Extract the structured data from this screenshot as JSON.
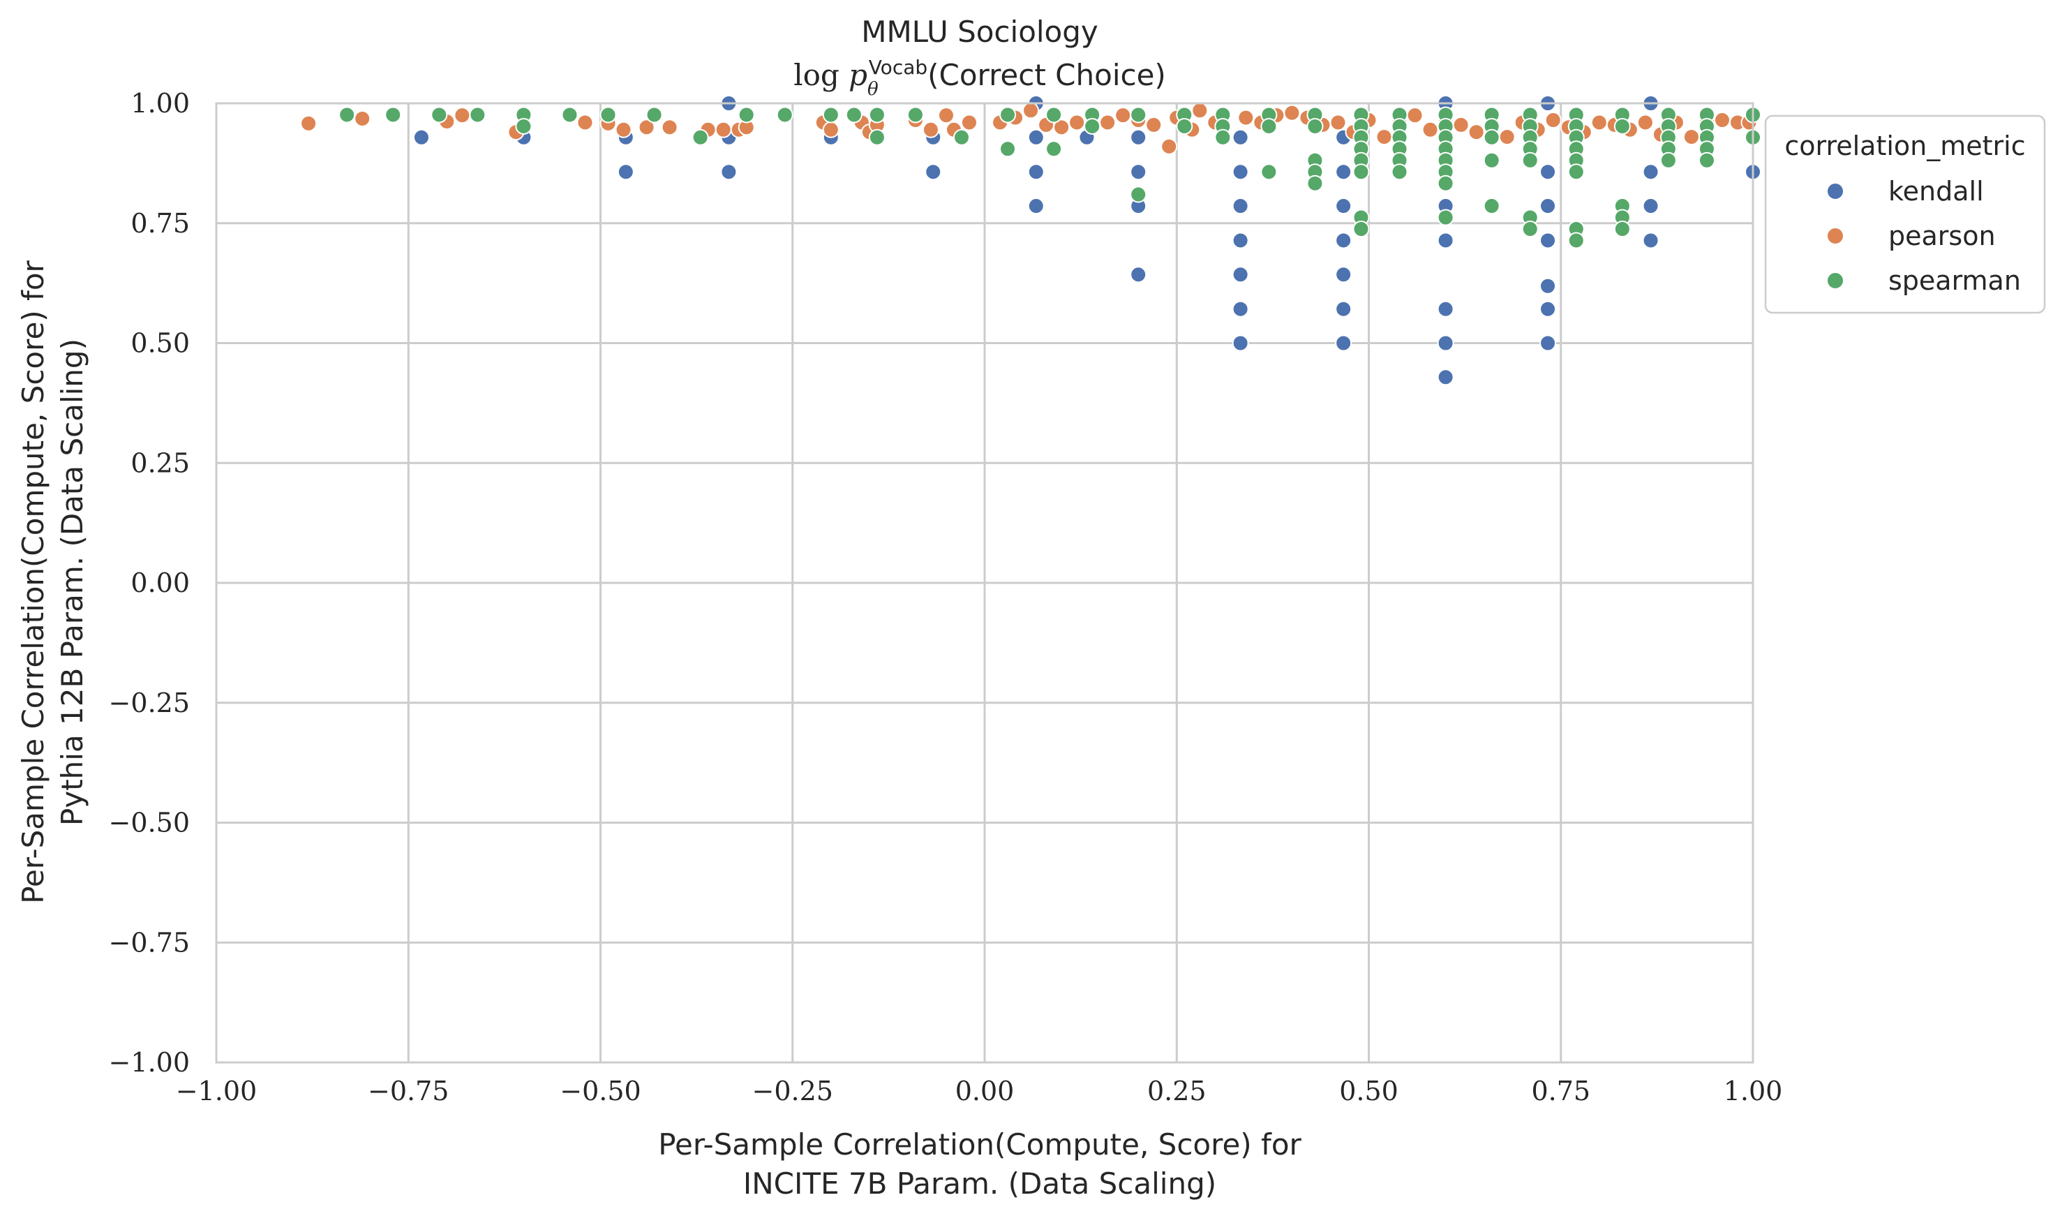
{
  "chart_data": {
    "type": "scatter",
    "title": "MMLU Sociology",
    "subtitle": {
      "prefix": "log ",
      "var": "p",
      "sub": "θ",
      "sup": "Vocab",
      "suffix": "(Correct Choice)"
    },
    "xlabel": [
      "Per-Sample Correlation(Compute, Score) for",
      "INCITE 7B Param. (Data Scaling)"
    ],
    "ylabel": [
      "Per-Sample Correlation(Compute, Score) for",
      "Pythia 12B Param. (Data Scaling)"
    ],
    "xlim": [
      -1.0,
      1.0
    ],
    "ylim": [
      -1.0,
      1.0
    ],
    "xticks": [
      "−1.00",
      "−0.75",
      "−0.50",
      "−0.25",
      "0.00",
      "0.25",
      "0.50",
      "0.75",
      "1.00"
    ],
    "yticks": [
      "1.00",
      "0.75",
      "0.50",
      "0.25",
      "0.00",
      "−0.25",
      "−0.50",
      "−0.75",
      "−1.00"
    ],
    "grid": true,
    "legend": {
      "title": "correlation_metric",
      "position": "outside-top-right",
      "entries": [
        "kendall",
        "pearson",
        "spearman"
      ]
    },
    "series": [
      {
        "name": "kendall",
        "color": "#4c72b0",
        "points": [
          [
            -0.733,
            0.929
          ],
          [
            -0.6,
            0.929
          ],
          [
            -0.467,
            0.929
          ],
          [
            -0.467,
            0.857
          ],
          [
            -0.333,
            1.0
          ],
          [
            -0.333,
            0.929
          ],
          [
            -0.333,
            0.857
          ],
          [
            -0.2,
            0.929
          ],
          [
            -0.067,
            0.929
          ],
          [
            -0.067,
            0.857
          ],
          [
            0.067,
            1.0
          ],
          [
            0.067,
            0.929
          ],
          [
            0.067,
            0.857
          ],
          [
            0.067,
            0.786
          ],
          [
            0.2,
            0.929
          ],
          [
            0.2,
            0.857
          ],
          [
            0.2,
            0.786
          ],
          [
            0.2,
            0.643
          ],
          [
            0.133,
            0.929
          ],
          [
            0.333,
            0.929
          ],
          [
            0.333,
            0.857
          ],
          [
            0.333,
            0.786
          ],
          [
            0.333,
            0.714
          ],
          [
            0.333,
            0.643
          ],
          [
            0.333,
            0.571
          ],
          [
            0.333,
            0.5
          ],
          [
            0.467,
            0.929
          ],
          [
            0.467,
            0.857
          ],
          [
            0.467,
            0.786
          ],
          [
            0.467,
            0.714
          ],
          [
            0.467,
            0.643
          ],
          [
            0.467,
            0.571
          ],
          [
            0.467,
            0.5
          ],
          [
            0.6,
            1.0
          ],
          [
            0.6,
            0.786
          ],
          [
            0.6,
            0.714
          ],
          [
            0.6,
            0.571
          ],
          [
            0.6,
            0.5
          ],
          [
            0.6,
            0.429
          ],
          [
            0.733,
            1.0
          ],
          [
            0.733,
            0.857
          ],
          [
            0.733,
            0.786
          ],
          [
            0.733,
            0.714
          ],
          [
            0.733,
            0.619
          ],
          [
            0.733,
            0.571
          ],
          [
            0.733,
            0.5
          ],
          [
            0.867,
            1.0
          ],
          [
            0.867,
            0.857
          ],
          [
            0.867,
            0.786
          ],
          [
            0.867,
            0.714
          ],
          [
            1.0,
            0.857
          ]
        ]
      },
      {
        "name": "pearson",
        "color": "#dd8452",
        "points": [
          [
            -0.88,
            0.958
          ],
          [
            -0.81,
            0.968
          ],
          [
            -0.7,
            0.962
          ],
          [
            -0.68,
            0.975
          ],
          [
            -0.61,
            0.94
          ],
          [
            -0.52,
            0.96
          ],
          [
            -0.49,
            0.958
          ],
          [
            -0.47,
            0.945
          ],
          [
            -0.44,
            0.95
          ],
          [
            -0.41,
            0.95
          ],
          [
            -0.36,
            0.945
          ],
          [
            -0.34,
            0.945
          ],
          [
            -0.32,
            0.945
          ],
          [
            -0.31,
            0.95
          ],
          [
            -0.21,
            0.96
          ],
          [
            -0.2,
            0.945
          ],
          [
            -0.16,
            0.96
          ],
          [
            -0.15,
            0.94
          ],
          [
            -0.14,
            0.955
          ],
          [
            -0.09,
            0.965
          ],
          [
            -0.07,
            0.945
          ],
          [
            -0.05,
            0.975
          ],
          [
            -0.04,
            0.945
          ],
          [
            -0.02,
            0.96
          ],
          [
            0.02,
            0.96
          ],
          [
            0.04,
            0.97
          ],
          [
            0.06,
            0.985
          ],
          [
            0.08,
            0.955
          ],
          [
            0.1,
            0.95
          ],
          [
            0.12,
            0.96
          ],
          [
            0.14,
            0.975
          ],
          [
            0.16,
            0.96
          ],
          [
            0.18,
            0.975
          ],
          [
            0.2,
            0.965
          ],
          [
            0.22,
            0.955
          ],
          [
            0.24,
            0.91
          ],
          [
            0.25,
            0.97
          ],
          [
            0.27,
            0.945
          ],
          [
            0.28,
            0.985
          ],
          [
            0.3,
            0.96
          ],
          [
            0.34,
            0.97
          ],
          [
            0.36,
            0.96
          ],
          [
            0.38,
            0.975
          ],
          [
            0.4,
            0.98
          ],
          [
            0.42,
            0.97
          ],
          [
            0.44,
            0.955
          ],
          [
            0.46,
            0.96
          ],
          [
            0.48,
            0.94
          ],
          [
            0.5,
            0.965
          ],
          [
            0.52,
            0.93
          ],
          [
            0.54,
            0.96
          ],
          [
            0.56,
            0.975
          ],
          [
            0.58,
            0.945
          ],
          [
            0.6,
            0.96
          ],
          [
            0.62,
            0.955
          ],
          [
            0.64,
            0.94
          ],
          [
            0.66,
            0.955
          ],
          [
            0.68,
            0.93
          ],
          [
            0.7,
            0.96
          ],
          [
            0.72,
            0.945
          ],
          [
            0.74,
            0.965
          ],
          [
            0.76,
            0.95
          ],
          [
            0.78,
            0.94
          ],
          [
            0.8,
            0.96
          ],
          [
            0.82,
            0.955
          ],
          [
            0.84,
            0.945
          ],
          [
            0.86,
            0.96
          ],
          [
            0.88,
            0.935
          ],
          [
            0.9,
            0.96
          ],
          [
            0.92,
            0.93
          ],
          [
            0.94,
            0.96
          ],
          [
            0.96,
            0.965
          ],
          [
            0.98,
            0.96
          ],
          [
            0.995,
            0.96
          ]
        ]
      },
      {
        "name": "spearman",
        "color": "#55a868",
        "points": [
          [
            -0.83,
            0.976
          ],
          [
            -0.77,
            0.976
          ],
          [
            -0.71,
            0.976
          ],
          [
            -0.66,
            0.976
          ],
          [
            -0.6,
            0.976
          ],
          [
            -0.6,
            0.952
          ],
          [
            -0.54,
            0.976
          ],
          [
            -0.49,
            0.976
          ],
          [
            -0.43,
            0.976
          ],
          [
            -0.37,
            0.929
          ],
          [
            -0.31,
            0.976
          ],
          [
            -0.26,
            0.976
          ],
          [
            -0.2,
            0.976
          ],
          [
            -0.17,
            0.976
          ],
          [
            -0.14,
            0.976
          ],
          [
            -0.14,
            0.929
          ],
          [
            -0.09,
            0.976
          ],
          [
            -0.03,
            0.929
          ],
          [
            0.03,
            0.976
          ],
          [
            0.03,
            0.905
          ],
          [
            0.09,
            0.976
          ],
          [
            0.09,
            0.905
          ],
          [
            0.14,
            0.976
          ],
          [
            0.14,
            0.952
          ],
          [
            0.2,
            0.976
          ],
          [
            0.2,
            0.81
          ],
          [
            0.26,
            0.976
          ],
          [
            0.26,
            0.952
          ],
          [
            0.31,
            0.976
          ],
          [
            0.31,
            0.952
          ],
          [
            0.31,
            0.929
          ],
          [
            0.37,
            0.976
          ],
          [
            0.37,
            0.952
          ],
          [
            0.37,
            0.857
          ],
          [
            0.43,
            0.976
          ],
          [
            0.43,
            0.952
          ],
          [
            0.43,
            0.881
          ],
          [
            0.43,
            0.857
          ],
          [
            0.43,
            0.833
          ],
          [
            0.49,
            0.976
          ],
          [
            0.49,
            0.952
          ],
          [
            0.49,
            0.929
          ],
          [
            0.49,
            0.905
          ],
          [
            0.49,
            0.881
          ],
          [
            0.49,
            0.857
          ],
          [
            0.49,
            0.762
          ],
          [
            0.49,
            0.738
          ],
          [
            0.54,
            0.976
          ],
          [
            0.54,
            0.952
          ],
          [
            0.54,
            0.929
          ],
          [
            0.54,
            0.905
          ],
          [
            0.54,
            0.881
          ],
          [
            0.54,
            0.857
          ],
          [
            0.6,
            0.976
          ],
          [
            0.6,
            0.952
          ],
          [
            0.6,
            0.929
          ],
          [
            0.6,
            0.905
          ],
          [
            0.6,
            0.881
          ],
          [
            0.6,
            0.857
          ],
          [
            0.6,
            0.833
          ],
          [
            0.6,
            0.762
          ],
          [
            0.66,
            0.976
          ],
          [
            0.66,
            0.952
          ],
          [
            0.66,
            0.929
          ],
          [
            0.66,
            0.881
          ],
          [
            0.66,
            0.786
          ],
          [
            0.71,
            0.976
          ],
          [
            0.71,
            0.952
          ],
          [
            0.71,
            0.929
          ],
          [
            0.71,
            0.905
          ],
          [
            0.71,
            0.881
          ],
          [
            0.71,
            0.762
          ],
          [
            0.71,
            0.738
          ],
          [
            0.77,
            0.976
          ],
          [
            0.77,
            0.952
          ],
          [
            0.77,
            0.929
          ],
          [
            0.77,
            0.905
          ],
          [
            0.77,
            0.881
          ],
          [
            0.77,
            0.857
          ],
          [
            0.77,
            0.738
          ],
          [
            0.77,
            0.714
          ],
          [
            0.83,
            0.976
          ],
          [
            0.83,
            0.952
          ],
          [
            0.83,
            0.786
          ],
          [
            0.83,
            0.762
          ],
          [
            0.83,
            0.738
          ],
          [
            0.89,
            0.976
          ],
          [
            0.89,
            0.952
          ],
          [
            0.89,
            0.929
          ],
          [
            0.89,
            0.905
          ],
          [
            0.89,
            0.881
          ],
          [
            0.94,
            0.976
          ],
          [
            0.94,
            0.952
          ],
          [
            0.94,
            0.929
          ],
          [
            0.94,
            0.905
          ],
          [
            0.94,
            0.881
          ],
          [
            1.0,
            0.976
          ],
          [
            1.0,
            0.929
          ]
        ]
      }
    ]
  }
}
